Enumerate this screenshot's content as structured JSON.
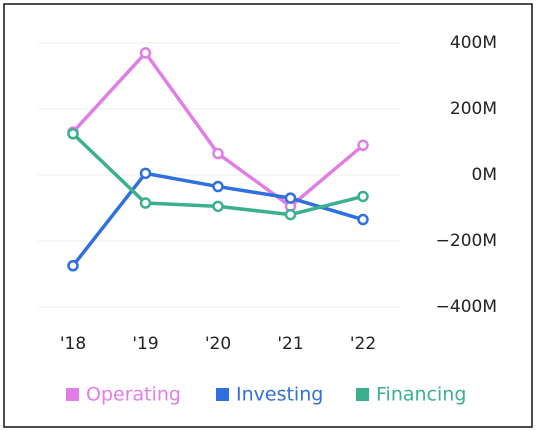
{
  "chart_data": {
    "type": "line",
    "categories": [
      "'18",
      "'19",
      "'20",
      "'21",
      "'22"
    ],
    "series": [
      {
        "name": "Operating",
        "color": "#e07ee6",
        "values": [
          130,
          370,
          65,
          -95,
          90
        ]
      },
      {
        "name": "Investing",
        "color": "#2f6fe0",
        "values": [
          -275,
          5,
          -35,
          -70,
          -135
        ]
      },
      {
        "name": "Financing",
        "color": "#3bb08f",
        "values": [
          125,
          -85,
          -95,
          -120,
          -65
        ]
      }
    ],
    "ylim": [
      -400,
      400
    ],
    "yticks": [
      {
        "value": 400,
        "label": "400M"
      },
      {
        "value": 200,
        "label": "200M"
      },
      {
        "value": 0,
        "label": "0M"
      },
      {
        "value": -200,
        "label": "−200M"
      },
      {
        "value": -400,
        "label": "−400M"
      }
    ],
    "grid": true,
    "legend": "bottom"
  }
}
